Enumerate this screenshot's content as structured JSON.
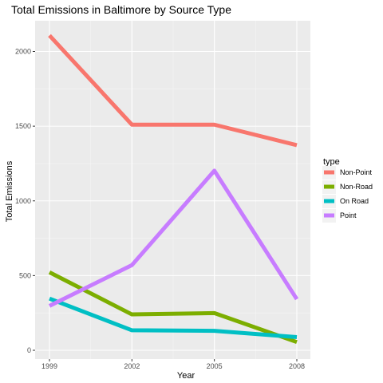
{
  "chart_data": {
    "type": "line",
    "title": "Total Emissions in Baltimore by Source Type",
    "xlabel": "Year",
    "ylabel": "Total Emissions",
    "x": [
      1999,
      2002,
      2005,
      2008
    ],
    "xlim": [
      1999,
      2008
    ],
    "ylim": [
      0,
      2100
    ],
    "yticks": [
      0,
      500,
      1000,
      1500,
      2000
    ],
    "xticks": [
      1999,
      2002,
      2005,
      2008
    ],
    "grid": true,
    "legend": {
      "title": "type",
      "placement": "right"
    },
    "series": [
      {
        "name": "Non-Point",
        "color": "#F8766D",
        "values": [
          2107,
          1510,
          1510,
          1373
        ]
      },
      {
        "name": "Non-Road",
        "color": "#7CAE00",
        "values": [
          522,
          240,
          249,
          55
        ]
      },
      {
        "name": "On Road",
        "color": "#00BFC4",
        "values": [
          346,
          134,
          130,
          88
        ]
      },
      {
        "name": "Point",
        "color": "#C77CFF",
        "values": [
          297,
          570,
          1202,
          342
        ]
      }
    ]
  }
}
